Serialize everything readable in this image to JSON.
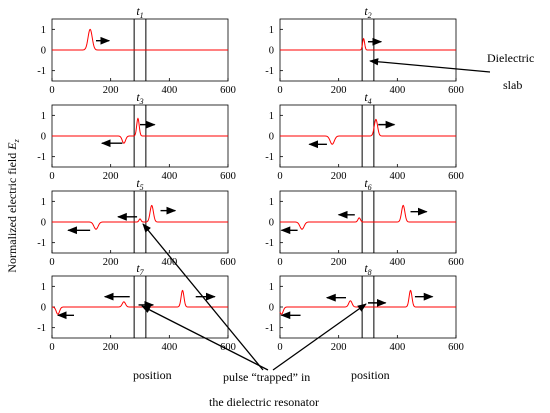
{
  "figure": {
    "ylabel": "Normalized electric field",
    "ylabel_var": "E",
    "ylabel_sub": "z",
    "annotations": {
      "slab_line1": "Dielectric",
      "slab_line2": "slab",
      "position_left": "position",
      "position_right": "position",
      "pulse_line1": "pulse “trapped” in",
      "pulse_line2": "the dielectric resonator"
    }
  },
  "chart_data": {
    "type": "line",
    "xlim": [
      0,
      600
    ],
    "ylim": [
      -1.5,
      1.5
    ],
    "xticks": [
      0,
      200,
      400,
      600
    ],
    "yticks": [
      1,
      0,
      -1
    ],
    "xtick_labels": [
      "0",
      "200",
      "400",
      "600"
    ],
    "ytick_labels": [
      "1",
      "0",
      "-1"
    ],
    "slab": [
      280,
      320
    ],
    "line_color": "#ff0000",
    "panels": [
      {
        "name": "t",
        "sub": "1",
        "pulses": [
          {
            "x": 130,
            "amp": 1.0,
            "w": 10
          }
        ],
        "arrows": [
          {
            "x1": 150,
            "x2": 195,
            "y": 0.45
          }
        ]
      },
      {
        "name": "t",
        "sub": "2",
        "pulses": [
          {
            "x": 285,
            "amp": 0.55,
            "w": 5
          }
        ],
        "arrows": [
          {
            "x1": 300,
            "x2": 345,
            "y": 0.4
          }
        ]
      },
      {
        "name": "t",
        "sub": "3",
        "pulses": [
          {
            "x": 245,
            "amp": -0.35,
            "w": 8
          },
          {
            "x": 293,
            "amp": 0.85,
            "w": 6
          }
        ],
        "arrows": [
          {
            "x1": 240,
            "x2": 170,
            "y": -0.35
          },
          {
            "x1": 300,
            "x2": 350,
            "y": 0.55
          }
        ]
      },
      {
        "name": "t",
        "sub": "4",
        "pulses": [
          {
            "x": 178,
            "amp": -0.4,
            "w": 10
          },
          {
            "x": 327,
            "amp": 0.8,
            "w": 8
          }
        ],
        "arrows": [
          {
            "x1": 160,
            "x2": 100,
            "y": -0.4
          },
          {
            "x1": 335,
            "x2": 390,
            "y": 0.55
          }
        ]
      },
      {
        "name": "t",
        "sub": "5",
        "pulses": [
          {
            "x": 150,
            "amp": -0.35,
            "w": 10
          },
          {
            "x": 300,
            "amp": 0.15,
            "w": 5
          },
          {
            "x": 340,
            "amp": 0.8,
            "w": 8
          }
        ],
        "arrows": [
          {
            "x1": 130,
            "x2": 55,
            "y": -0.4
          },
          {
            "x1": 290,
            "x2": 225,
            "y": 0.25
          },
          {
            "x1": 370,
            "x2": 420,
            "y": 0.55
          }
        ]
      },
      {
        "name": "t",
        "sub": "6",
        "pulses": [
          {
            "x": 75,
            "amp": -0.35,
            "w": 10
          },
          {
            "x": 270,
            "amp": 0.2,
            "w": 6
          },
          {
            "x": 420,
            "amp": 0.8,
            "w": 8
          }
        ],
        "arrows": [
          {
            "x1": 60,
            "x2": 5,
            "y": -0.4
          },
          {
            "x1": 255,
            "x2": 200,
            "y": 0.35
          },
          {
            "x1": 445,
            "x2": 500,
            "y": 0.5
          }
        ]
      },
      {
        "name": "t",
        "sub": "7",
        "pulses": [
          {
            "x": 20,
            "amp": -0.35,
            "w": 8
          },
          {
            "x": 245,
            "amp": 0.25,
            "w": 8
          },
          {
            "x": 445,
            "amp": 0.8,
            "w": 7
          }
        ],
        "arrows": [
          {
            "x1": 75,
            "x2": 20,
            "y": -0.4
          },
          {
            "x1": 265,
            "x2": 180,
            "y": 0.5
          },
          {
            "x1": 295,
            "x2": 345,
            "y": 0.1
          },
          {
            "x1": 490,
            "x2": 555,
            "y": 0.5
          }
        ]
      },
      {
        "name": "t",
        "sub": "8",
        "pulses": [
          {
            "x": 5,
            "amp": -0.35,
            "w": 8
          },
          {
            "x": 240,
            "amp": 0.3,
            "w": 8
          },
          {
            "x": 445,
            "amp": 0.8,
            "w": 7
          }
        ],
        "arrows": [
          {
            "x1": 70,
            "x2": 5,
            "y": -0.4
          },
          {
            "x1": 225,
            "x2": 160,
            "y": 0.45
          },
          {
            "x1": 300,
            "x2": 360,
            "y": 0.2
          },
          {
            "x1": 460,
            "x2": 520,
            "y": 0.5
          }
        ]
      }
    ]
  }
}
